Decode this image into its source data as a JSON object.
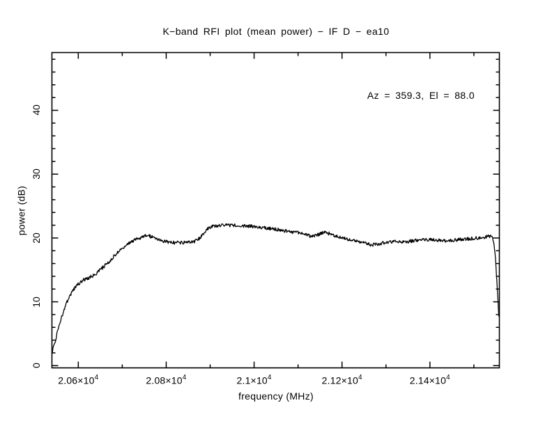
{
  "chart_data": {
    "type": "line",
    "title": "K−band RFI plot (mean power) − IF D − ea10",
    "annotation": "Az = 359.3, El = 88.0",
    "xlabel": "frequency (MHz)",
    "ylabel": "power (dB)",
    "xlim": [
      20540,
      21558
    ],
    "ylim": [
      -0.35,
      49.05
    ],
    "grid": false,
    "legend": "none",
    "line_color": "#000000",
    "background_color": "#ffffff",
    "noise_db": 0.27,
    "x_major_ticks": [
      {
        "value": 20600,
        "mantissa": "2.06×10",
        "exponent": "4"
      },
      {
        "value": 20800,
        "mantissa": "2.08×10",
        "exponent": "4"
      },
      {
        "value": 21000,
        "mantissa": "2.1×10",
        "exponent": "4"
      },
      {
        "value": 21200,
        "mantissa": "2.12×10",
        "exponent": "4"
      },
      {
        "value": 21400,
        "mantissa": "2.14×10",
        "exponent": "4"
      }
    ],
    "x_minor_ticks": [
      20700,
      20900,
      21100,
      21300,
      21500
    ],
    "y_major_ticks": [
      {
        "value": 0,
        "label": "0"
      },
      {
        "value": 10,
        "label": "10"
      },
      {
        "value": 20,
        "label": "20"
      },
      {
        "value": 30,
        "label": "30"
      },
      {
        "value": 40,
        "label": "40"
      }
    ],
    "y_minor_step": 2,
    "series": [
      {
        "name": "mean power",
        "points": [
          [
            20540,
            2.0
          ],
          [
            20548,
            4.0
          ],
          [
            20556,
            6.2
          ],
          [
            20564,
            8.0
          ],
          [
            20572,
            9.6
          ],
          [
            20580,
            10.9
          ],
          [
            20588,
            11.8
          ],
          [
            20596,
            12.5
          ],
          [
            20604,
            13.0
          ],
          [
            20612,
            13.4
          ],
          [
            20625,
            13.8
          ],
          [
            20640,
            14.4
          ],
          [
            20655,
            15.3
          ],
          [
            20670,
            16.3
          ],
          [
            20685,
            17.4
          ],
          [
            20700,
            18.4
          ],
          [
            20712,
            19.0
          ],
          [
            20724,
            19.5
          ],
          [
            20736,
            19.9
          ],
          [
            20748,
            20.25
          ],
          [
            20758,
            20.4
          ],
          [
            20770,
            20.1
          ],
          [
            20782,
            19.8
          ],
          [
            20794,
            19.5
          ],
          [
            20808,
            19.35
          ],
          [
            20828,
            19.25
          ],
          [
            20848,
            19.3
          ],
          [
            20864,
            19.45
          ],
          [
            20875,
            19.9
          ],
          [
            20885,
            20.7
          ],
          [
            20894,
            21.4
          ],
          [
            20903,
            21.8
          ],
          [
            20916,
            21.9
          ],
          [
            20936,
            22.0
          ],
          [
            20960,
            22.0
          ],
          [
            20985,
            21.9
          ],
          [
            21010,
            21.7
          ],
          [
            21040,
            21.45
          ],
          [
            21070,
            21.15
          ],
          [
            21100,
            20.8
          ],
          [
            21125,
            20.35
          ],
          [
            21140,
            20.3
          ],
          [
            21155,
            20.85
          ],
          [
            21168,
            20.75
          ],
          [
            21182,
            20.4
          ],
          [
            21196,
            20.1
          ],
          [
            21216,
            19.75
          ],
          [
            21236,
            19.45
          ],
          [
            21256,
            19.1
          ],
          [
            21270,
            18.9
          ],
          [
            21286,
            19.15
          ],
          [
            21302,
            19.35
          ],
          [
            21322,
            19.4
          ],
          [
            21346,
            19.4
          ],
          [
            21366,
            19.6
          ],
          [
            21386,
            19.75
          ],
          [
            21406,
            19.7
          ],
          [
            21426,
            19.6
          ],
          [
            21446,
            19.6
          ],
          [
            21466,
            19.75
          ],
          [
            21486,
            19.85
          ],
          [
            21506,
            20.0
          ],
          [
            21522,
            20.1
          ],
          [
            21536,
            20.3
          ],
          [
            21541,
            20.2
          ],
          [
            21545,
            19.3
          ],
          [
            21549,
            17.0
          ],
          [
            21552,
            13.5
          ],
          [
            21555,
            9.8
          ],
          [
            21557,
            7.6
          ]
        ]
      }
    ]
  }
}
